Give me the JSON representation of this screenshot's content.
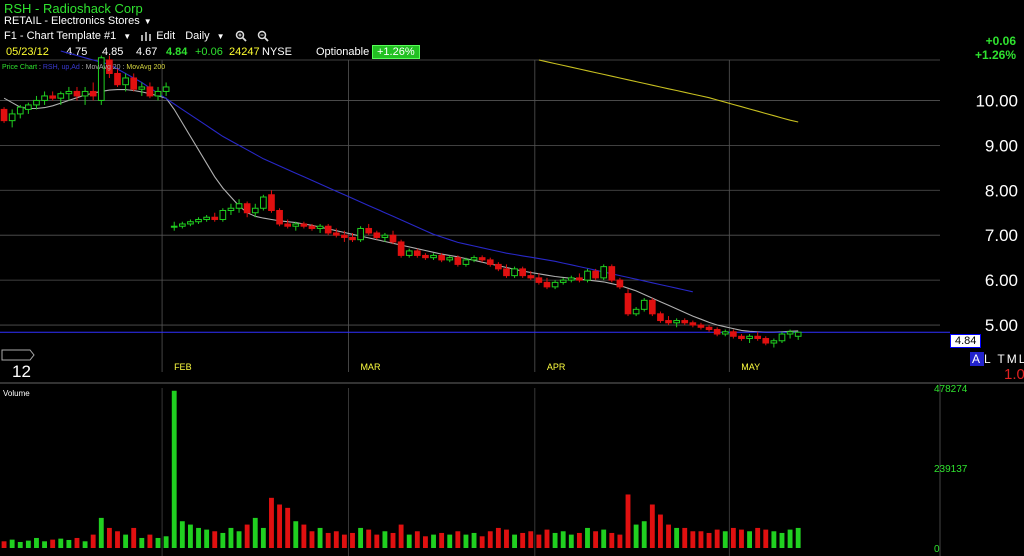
{
  "header": {
    "title": "RSH - Radioshack Corp",
    "subtitle": "RETAIL - Electronics Stores",
    "template": "F1 - Chart Template #1",
    "edit_label": "Edit",
    "interval": "Daily"
  },
  "quote": {
    "date": "05/23/12",
    "open": "4.75",
    "high": "4.85",
    "low": "4.67",
    "last": "4.84",
    "change": "+0.06",
    "volume": "24247",
    "exchange": "NYSE",
    "optionable": "Optionable",
    "pct_change": "+1.26%",
    "big_change": "+0.06",
    "big_pct": "+1.26%"
  },
  "legend": {
    "price": "Price Chart",
    "symbol": "RSH, up,Ad",
    "ma20": "MovAvg 20",
    "ma200": "MovAvg 200"
  },
  "side": {
    "left_value": "12",
    "current_label": "4.84",
    "al_a": "A",
    "al_rest": "L TML",
    "red_one": "1.0"
  },
  "colors": {
    "up": "#20d020",
    "down": "#e01010",
    "ma20": "#b0b0b0",
    "ma50": "#2828c8",
    "ma200": "#c8c020",
    "grid": "#555555",
    "axis_text": "#ffffff"
  },
  "chart_data": {
    "type": "candlestick",
    "title": "RSH - Radioshack Corp",
    "ylim": [
      4.4,
      10.9
    ],
    "y_ticks": [
      "10.00",
      "9.00",
      "8.00",
      "7.00",
      "6.00",
      "5.00"
    ],
    "y_tick_values": [
      10,
      9,
      8,
      7,
      6,
      5
    ],
    "x_month_labels": [
      "FEB",
      "MAR",
      "APR",
      "MAY"
    ],
    "x_month_index": [
      20,
      43,
      66,
      90
    ],
    "n_bars": 116,
    "grid": true,
    "candles": [
      [
        9.8,
        9.85,
        9.5,
        9.55
      ],
      [
        9.55,
        9.8,
        9.4,
        9.7
      ],
      [
        9.7,
        9.9,
        9.6,
        9.85
      ],
      [
        9.8,
        9.95,
        9.7,
        9.9
      ],
      [
        9.9,
        10.1,
        9.8,
        10.0
      ],
      [
        10.0,
        10.2,
        9.9,
        10.1
      ],
      [
        10.1,
        10.2,
        10.0,
        10.05
      ],
      [
        10.05,
        10.2,
        9.9,
        10.15
      ],
      [
        10.15,
        10.3,
        10.0,
        10.2
      ],
      [
        10.2,
        10.3,
        10.0,
        10.1
      ],
      [
        10.1,
        10.3,
        9.9,
        10.2
      ],
      [
        10.2,
        10.4,
        10.0,
        10.1
      ],
      [
        10.0,
        11.0,
        9.9,
        10.95
      ],
      [
        10.9,
        11.0,
        10.5,
        10.6
      ],
      [
        10.6,
        10.7,
        10.3,
        10.35
      ],
      [
        10.35,
        10.6,
        10.2,
        10.5
      ],
      [
        10.5,
        10.6,
        10.2,
        10.25
      ],
      [
        10.25,
        10.4,
        10.1,
        10.3
      ],
      [
        10.3,
        10.4,
        10.05,
        10.1
      ],
      [
        10.1,
        10.3,
        10.0,
        10.2
      ],
      [
        10.2,
        10.4,
        10.1,
        10.3
      ],
      [
        7.2,
        7.3,
        7.1,
        7.2
      ],
      [
        7.2,
        7.3,
        7.15,
        7.25
      ],
      [
        7.25,
        7.35,
        7.2,
        7.3
      ],
      [
        7.3,
        7.4,
        7.25,
        7.35
      ],
      [
        7.35,
        7.45,
        7.3,
        7.4
      ],
      [
        7.4,
        7.5,
        7.3,
        7.35
      ],
      [
        7.35,
        7.6,
        7.3,
        7.55
      ],
      [
        7.55,
        7.7,
        7.45,
        7.6
      ],
      [
        7.6,
        7.8,
        7.5,
        7.7
      ],
      [
        7.7,
        7.75,
        7.4,
        7.5
      ],
      [
        7.5,
        7.7,
        7.4,
        7.6
      ],
      [
        7.6,
        7.9,
        7.55,
        7.85
      ],
      [
        7.9,
        8.0,
        7.5,
        7.55
      ],
      [
        7.55,
        7.6,
        7.2,
        7.25
      ],
      [
        7.25,
        7.35,
        7.15,
        7.2
      ],
      [
        7.2,
        7.3,
        7.1,
        7.25
      ],
      [
        7.25,
        7.3,
        7.15,
        7.2
      ],
      [
        7.2,
        7.25,
        7.1,
        7.15
      ],
      [
        7.15,
        7.25,
        7.05,
        7.2
      ],
      [
        7.2,
        7.25,
        7.0,
        7.05
      ],
      [
        7.05,
        7.15,
        6.95,
        7.0
      ],
      [
        7.0,
        7.1,
        6.85,
        6.95
      ],
      [
        6.95,
        7.05,
        6.85,
        6.9
      ],
      [
        6.9,
        7.2,
        6.85,
        7.15
      ],
      [
        7.15,
        7.25,
        7.0,
        7.05
      ],
      [
        7.05,
        7.1,
        6.9,
        6.95
      ],
      [
        6.95,
        7.05,
        6.85,
        7.0
      ],
      [
        7.0,
        7.1,
        6.8,
        6.85
      ],
      [
        6.85,
        6.9,
        6.5,
        6.55
      ],
      [
        6.55,
        6.7,
        6.5,
        6.65
      ],
      [
        6.65,
        6.7,
        6.5,
        6.55
      ],
      [
        6.55,
        6.6,
        6.45,
        6.5
      ],
      [
        6.5,
        6.6,
        6.45,
        6.55
      ],
      [
        6.55,
        6.6,
        6.4,
        6.45
      ],
      [
        6.45,
        6.55,
        6.4,
        6.5
      ],
      [
        6.5,
        6.55,
        6.3,
        6.35
      ],
      [
        6.35,
        6.5,
        6.3,
        6.45
      ],
      [
        6.45,
        6.55,
        6.4,
        6.5
      ],
      [
        6.5,
        6.55,
        6.4,
        6.45
      ],
      [
        6.45,
        6.5,
        6.3,
        6.35
      ],
      [
        6.35,
        6.4,
        6.2,
        6.25
      ],
      [
        6.25,
        6.35,
        6.05,
        6.1
      ],
      [
        6.1,
        6.3,
        6.05,
        6.25
      ],
      [
        6.25,
        6.3,
        6.05,
        6.1
      ],
      [
        6.1,
        6.2,
        6.0,
        6.05
      ],
      [
        6.05,
        6.15,
        5.9,
        5.95
      ],
      [
        5.95,
        6.05,
        5.8,
        5.85
      ],
      [
        5.85,
        6.0,
        5.8,
        5.95
      ],
      [
        5.95,
        6.05,
        5.9,
        6.0
      ],
      [
        6.0,
        6.1,
        5.95,
        6.05
      ],
      [
        6.05,
        6.15,
        5.95,
        6.0
      ],
      [
        6.0,
        6.25,
        5.95,
        6.2
      ],
      [
        6.2,
        6.25,
        6.0,
        6.05
      ],
      [
        6.05,
        6.35,
        6.0,
        6.3
      ],
      [
        6.3,
        6.35,
        5.95,
        6.0
      ],
      [
        6.0,
        6.05,
        5.8,
        5.85
      ],
      [
        5.7,
        5.8,
        5.2,
        5.25
      ],
      [
        5.25,
        5.4,
        5.2,
        5.35
      ],
      [
        5.35,
        5.6,
        5.3,
        5.55
      ],
      [
        5.55,
        5.6,
        5.2,
        5.25
      ],
      [
        5.25,
        5.3,
        5.05,
        5.1
      ],
      [
        5.1,
        5.2,
        5.0,
        5.05
      ],
      [
        5.05,
        5.15,
        4.95,
        5.1
      ],
      [
        5.1,
        5.15,
        5.0,
        5.05
      ],
      [
        5.05,
        5.1,
        4.95,
        5.0
      ],
      [
        5.0,
        5.05,
        4.9,
        4.95
      ],
      [
        4.95,
        5.0,
        4.85,
        4.9
      ],
      [
        4.9,
        4.95,
        4.75,
        4.8
      ],
      [
        4.8,
        4.9,
        4.75,
        4.85
      ],
      [
        4.85,
        4.9,
        4.7,
        4.75
      ],
      [
        4.75,
        4.8,
        4.65,
        4.7
      ],
      [
        4.7,
        4.8,
        4.6,
        4.75
      ],
      [
        4.75,
        4.85,
        4.65,
        4.7
      ],
      [
        4.7,
        4.75,
        4.55,
        4.6
      ],
      [
        4.6,
        4.7,
        4.5,
        4.65
      ],
      [
        4.65,
        4.85,
        4.6,
        4.8
      ],
      [
        4.8,
        4.9,
        4.7,
        4.85
      ],
      [
        4.75,
        4.85,
        4.67,
        4.84
      ]
    ],
    "ma20": [
      10.05,
      9.95,
      9.85,
      9.82,
      9.82,
      9.84,
      9.88,
      9.94,
      10.0,
      10.06,
      10.12,
      10.16,
      10.2,
      10.23,
      10.24,
      10.24,
      10.22,
      10.19,
      10.15,
      10.1,
      10.05,
      9.8,
      9.5,
      9.2,
      8.9,
      8.6,
      8.3,
      8.05,
      7.85,
      7.65,
      7.5,
      7.42,
      7.38,
      7.35,
      7.32,
      7.3,
      7.28,
      7.25,
      7.22,
      7.18,
      7.14,
      7.1,
      7.06,
      7.02,
      6.98,
      6.94,
      6.9,
      6.86,
      6.82,
      6.78,
      6.74,
      6.7,
      6.66,
      6.62,
      6.58,
      6.55,
      6.52,
      6.48,
      6.44,
      6.4,
      6.36,
      6.32,
      6.28,
      6.24,
      6.2,
      6.17,
      6.14,
      6.11,
      6.08,
      6.06,
      6.04,
      6.02,
      6.0,
      5.98,
      5.96,
      5.92,
      5.88,
      5.82,
      5.76,
      5.68,
      5.6,
      5.52,
      5.44,
      5.36,
      5.28,
      5.2,
      5.13,
      5.06,
      5.0,
      4.96,
      4.92,
      4.88,
      4.86,
      4.85,
      4.84,
      4.84,
      4.85,
      4.86,
      4.87
    ],
    "ma50": [
      11.1,
      11.05,
      11.0,
      10.95,
      10.9,
      10.85,
      10.8,
      10.7,
      10.6,
      10.5,
      10.4,
      10.28,
      10.16,
      10.04,
      9.92,
      9.8,
      9.68,
      9.56,
      9.44,
      9.32,
      9.2,
      9.1,
      9.0,
      8.9,
      8.8,
      8.7,
      8.62,
      8.54,
      8.46,
      8.38,
      8.3,
      8.22,
      8.14,
      8.06,
      7.98,
      7.9,
      7.82,
      7.74,
      7.66,
      7.58,
      7.5,
      7.42,
      7.34,
      7.26,
      7.18,
      7.1,
      7.02,
      6.96,
      6.9,
      6.84,
      6.8,
      6.76,
      6.72,
      6.68,
      6.64,
      6.6,
      6.57,
      6.54,
      6.51,
      6.48,
      6.45,
      6.42,
      6.38,
      6.34,
      6.3,
      6.26,
      6.22,
      6.18,
      6.14,
      6.1,
      6.06,
      6.02,
      5.98,
      5.94,
      5.9,
      5.86,
      5.82,
      5.78,
      5.74
    ],
    "ma200": [
      10.9,
      10.86,
      10.82,
      10.78,
      10.74,
      10.7,
      10.66,
      10.62,
      10.58,
      10.54,
      10.5,
      10.46,
      10.42,
      10.38,
      10.34,
      10.3,
      10.26,
      10.22,
      10.18,
      10.14,
      10.1,
      10.06,
      10.01,
      9.96,
      9.91,
      9.86,
      9.81,
      9.76,
      9.71,
      9.66,
      9.61,
      9.56,
      9.52
    ],
    "volume_ylim": [
      0,
      478274
    ],
    "volume_ticks": [
      "478274",
      "239137",
      "0"
    ],
    "volume_tick_values": [
      478274,
      239137,
      0
    ],
    "volume": [
      20000,
      25000,
      18000,
      22000,
      30000,
      20000,
      25000,
      28000,
      24000,
      30000,
      20000,
      40000,
      90000,
      60000,
      50000,
      40000,
      60000,
      30000,
      40000,
      30000,
      35000,
      470000,
      80000,
      70000,
      60000,
      55000,
      50000,
      45000,
      60000,
      50000,
      70000,
      90000,
      60000,
      150000,
      130000,
      120000,
      80000,
      70000,
      50000,
      60000,
      45000,
      50000,
      40000,
      45000,
      60000,
      55000,
      40000,
      50000,
      45000,
      70000,
      40000,
      50000,
      35000,
      40000,
      45000,
      40000,
      50000,
      40000,
      45000,
      35000,
      50000,
      60000,
      55000,
      40000,
      45000,
      50000,
      40000,
      55000,
      45000,
      50000,
      40000,
      45000,
      60000,
      50000,
      55000,
      45000,
      40000,
      160000,
      70000,
      80000,
      130000,
      100000,
      70000,
      60000,
      60000,
      50000,
      50000,
      45000,
      55000,
      50000,
      60000,
      55000,
      50000,
      60000,
      55000,
      50000,
      45000,
      55000,
      60000
    ]
  }
}
